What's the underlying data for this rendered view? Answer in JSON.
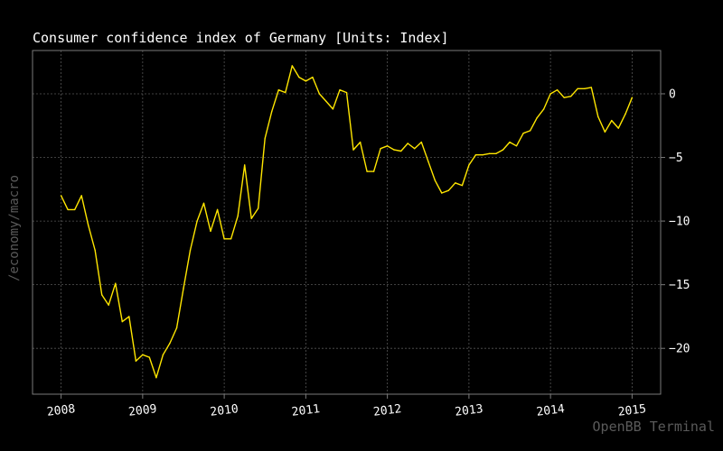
{
  "header": {
    "title": "Consumer confidence index of Germany [Units: Index]"
  },
  "side_label": "/economy/macro",
  "watermark": "OpenBB Terminal",
  "colors": {
    "background": "#000000",
    "axis": "#7a7a7a",
    "grid": "#555555",
    "line": "#ffe600",
    "text": "#ffffff",
    "muted": "#5a5a5a"
  },
  "chart_data": {
    "type": "line",
    "title": "Consumer confidence index of Germany [Units: Index]",
    "xlabel": "",
    "ylabel": "",
    "x_range": [
      2007.65,
      2015.35
    ],
    "ylim": [
      -23.6,
      3.4
    ],
    "x_ticks": [
      {
        "value": 2008,
        "label": "2008"
      },
      {
        "value": 2009,
        "label": "2009"
      },
      {
        "value": 2010,
        "label": "2010"
      },
      {
        "value": 2011,
        "label": "2011"
      },
      {
        "value": 2012,
        "label": "2012"
      },
      {
        "value": 2013,
        "label": "2013"
      },
      {
        "value": 2014,
        "label": "2014"
      },
      {
        "value": 2015,
        "label": "2015"
      }
    ],
    "y_ticks": [
      {
        "value": 0,
        "label": "0"
      },
      {
        "value": -5,
        "label": "−5"
      },
      {
        "value": -10,
        "label": "−10"
      },
      {
        "value": -15,
        "label": "−15"
      },
      {
        "value": -20,
        "label": "−20"
      }
    ],
    "grid": true,
    "y_axis_side": "right",
    "series": [
      {
        "x": [
          2008.0,
          2008.083,
          2008.167,
          2008.25,
          2008.333,
          2008.417,
          2008.5,
          2008.583,
          2008.667,
          2008.75,
          2008.833,
          2008.917,
          2009.0,
          2009.083,
          2009.167,
          2009.25,
          2009.333,
          2009.417,
          2009.5,
          2009.583,
          2009.667,
          2009.75,
          2009.833,
          2009.917,
          2010.0,
          2010.083,
          2010.167,
          2010.25,
          2010.333,
          2010.417,
          2010.5,
          2010.583,
          2010.667,
          2010.75,
          2010.833,
          2010.917,
          2011.0,
          2011.083,
          2011.167,
          2011.25,
          2011.333,
          2011.417,
          2011.5,
          2011.583,
          2011.667,
          2011.75,
          2011.833,
          2011.917,
          2012.0,
          2012.083,
          2012.167,
          2012.25,
          2012.333,
          2012.417,
          2012.5,
          2012.583,
          2012.667,
          2012.75,
          2012.833,
          2012.917,
          2013.0,
          2013.083,
          2013.167,
          2013.25,
          2013.333,
          2013.417,
          2013.5,
          2013.583,
          2013.667,
          2013.75,
          2013.833,
          2013.917,
          2014.0,
          2014.083,
          2014.167,
          2014.25,
          2014.333,
          2014.417,
          2014.5,
          2014.583,
          2014.667,
          2014.75,
          2014.833,
          2014.917,
          2015.0
        ],
        "y": [
          -8.0,
          -9.1,
          -9.1,
          -8.0,
          -10.3,
          -12.3,
          -15.8,
          -16.6,
          -14.9,
          -17.9,
          -17.5,
          -21.0,
          -20.5,
          -20.7,
          -22.3,
          -20.5,
          -19.6,
          -18.4,
          -15.3,
          -12.3,
          -10.0,
          -8.6,
          -10.8,
          -9.1,
          -11.4,
          -11.4,
          -9.6,
          -5.6,
          -9.8,
          -9.0,
          -3.5,
          -1.4,
          0.3,
          0.1,
          2.2,
          1.3,
          1.0,
          1.3,
          0.0,
          -0.6,
          -1.2,
          0.3,
          0.1,
          -4.4,
          -3.8,
          -6.1,
          -6.1,
          -4.3,
          -4.1,
          -4.4,
          -4.5,
          -3.9,
          -4.3,
          -3.8,
          -5.3,
          -6.8,
          -7.8,
          -7.6,
          -7.0,
          -7.2,
          -5.6,
          -4.8,
          -4.8,
          -4.7,
          -4.7,
          -4.4,
          -3.8,
          -4.1,
          -3.1,
          -2.9,
          -1.9,
          -1.2,
          0.0,
          0.3,
          -0.3,
          -0.2,
          0.4,
          0.4,
          0.5,
          -1.8,
          -3.0,
          -2.1,
          -2.7,
          -1.6,
          -0.3
        ]
      }
    ]
  }
}
